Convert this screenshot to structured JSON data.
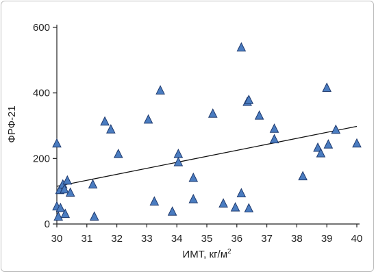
{
  "chart_data": {
    "type": "scatter",
    "title": "",
    "xlabel": "ИМТ, кг/м",
    "xlabel_sup": "2",
    "ylabel": "ФРФ-21",
    "xlim": [
      30,
      40
    ],
    "ylim": [
      0,
      600
    ],
    "x_ticks": [
      "30",
      "31",
      "32",
      "33",
      "34",
      "35",
      "36",
      "37",
      "38",
      "39",
      "40"
    ],
    "y_ticks": [
      "0",
      "200",
      "400",
      "600"
    ],
    "grid": false,
    "marker": "triangle",
    "marker_color": "#4a7cc0",
    "marker_edge": "#1f3a6e",
    "trendline": {
      "x": [
        30,
        40
      ],
      "y": [
        115,
        298
      ]
    },
    "points": [
      {
        "x": 30.0,
        "y": 245
      },
      {
        "x": 30.0,
        "y": 53
      },
      {
        "x": 30.05,
        "y": 22
      },
      {
        "x": 30.1,
        "y": 103
      },
      {
        "x": 30.12,
        "y": 48
      },
      {
        "x": 30.2,
        "y": 120
      },
      {
        "x": 30.25,
        "y": 105
      },
      {
        "x": 30.28,
        "y": 30
      },
      {
        "x": 30.35,
        "y": 132
      },
      {
        "x": 30.45,
        "y": 95
      },
      {
        "x": 31.2,
        "y": 120
      },
      {
        "x": 31.25,
        "y": 22
      },
      {
        "x": 31.6,
        "y": 312
      },
      {
        "x": 31.8,
        "y": 288
      },
      {
        "x": 32.05,
        "y": 213
      },
      {
        "x": 33.05,
        "y": 318
      },
      {
        "x": 33.25,
        "y": 68
      },
      {
        "x": 33.45,
        "y": 407
      },
      {
        "x": 33.85,
        "y": 37
      },
      {
        "x": 34.05,
        "y": 213
      },
      {
        "x": 34.05,
        "y": 188
      },
      {
        "x": 34.55,
        "y": 140
      },
      {
        "x": 34.55,
        "y": 75
      },
      {
        "x": 35.2,
        "y": 336
      },
      {
        "x": 35.55,
        "y": 62
      },
      {
        "x": 35.95,
        "y": 50
      },
      {
        "x": 36.15,
        "y": 538
      },
      {
        "x": 36.15,
        "y": 93
      },
      {
        "x": 36.35,
        "y": 372
      },
      {
        "x": 36.4,
        "y": 378
      },
      {
        "x": 36.4,
        "y": 47
      },
      {
        "x": 36.75,
        "y": 330
      },
      {
        "x": 37.25,
        "y": 290
      },
      {
        "x": 37.25,
        "y": 258
      },
      {
        "x": 38.2,
        "y": 145
      },
      {
        "x": 38.7,
        "y": 232
      },
      {
        "x": 38.8,
        "y": 215
      },
      {
        "x": 39.0,
        "y": 415
      },
      {
        "x": 39.05,
        "y": 242
      },
      {
        "x": 39.3,
        "y": 287
      },
      {
        "x": 40.0,
        "y": 245
      }
    ]
  }
}
